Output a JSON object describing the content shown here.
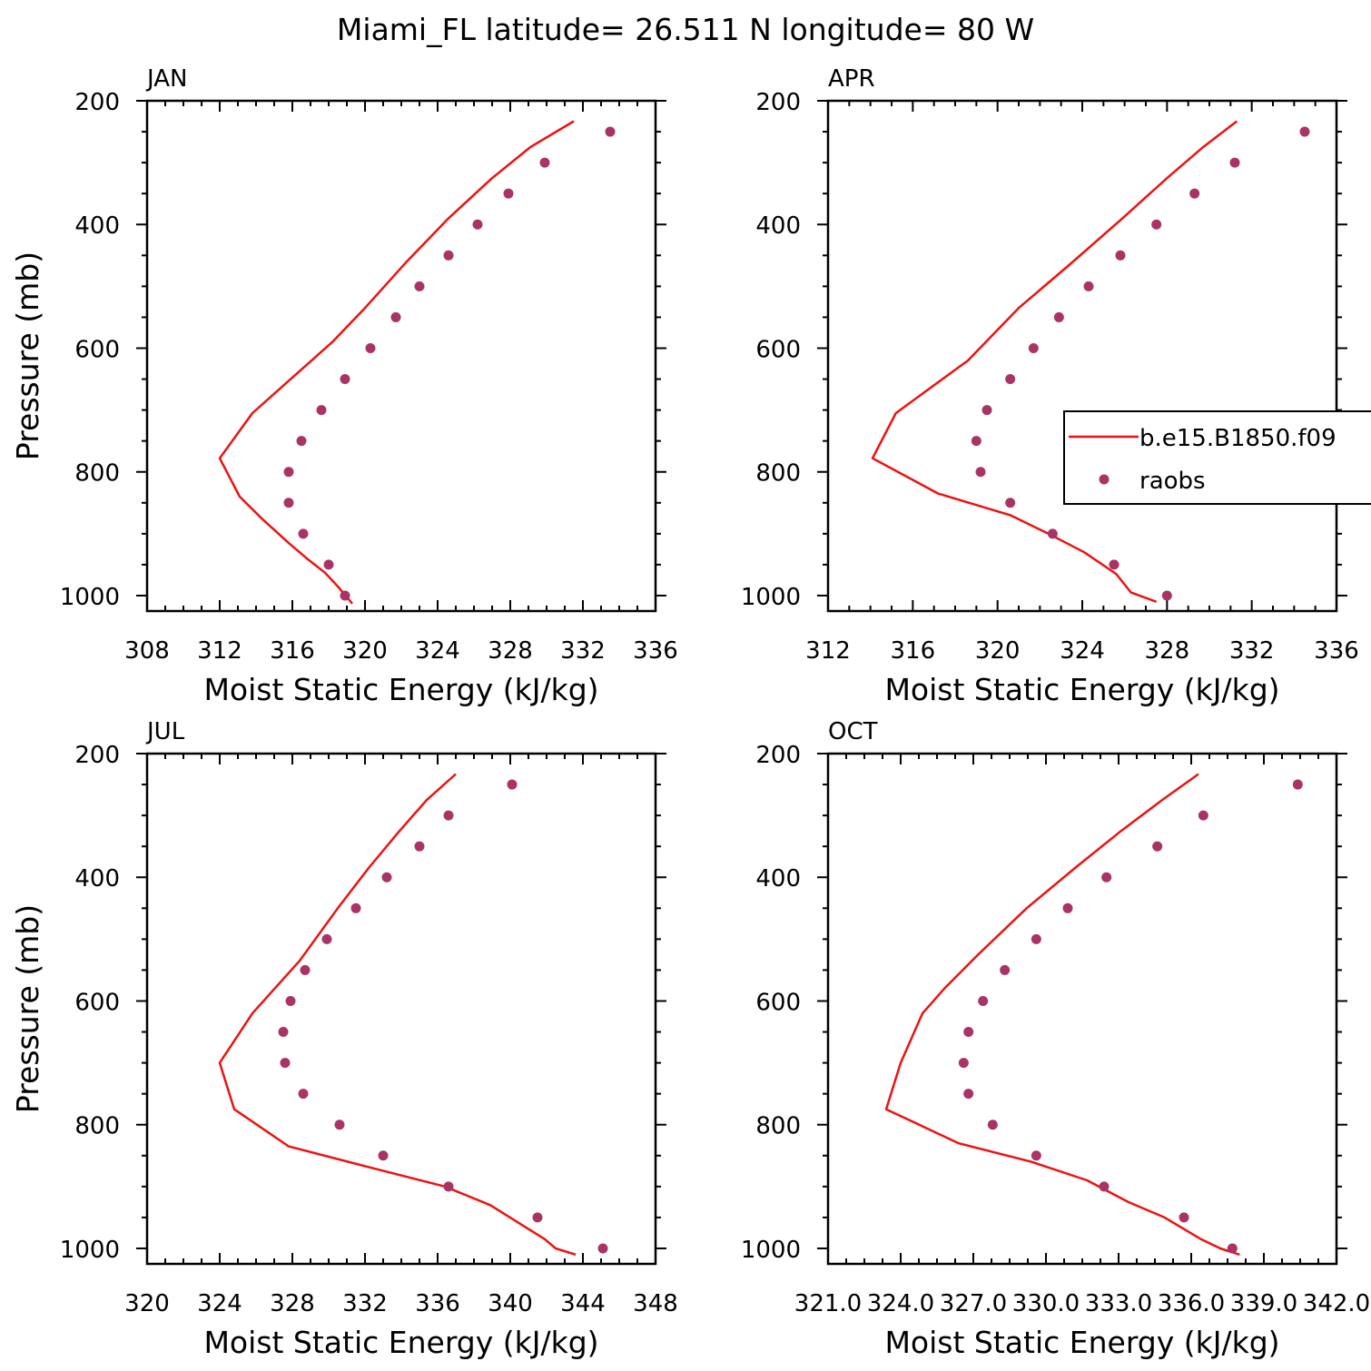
{
  "figure_title": "Miami_FL  latitude= 26.511 N longitude= 80 W",
  "colors": {
    "model": "#ee1111",
    "raobs": "#aa3366",
    "axes": "#000000"
  },
  "legend": {
    "entries": [
      "b.e15.B1850.f09",
      "raobs"
    ],
    "placement": "right, inside APR panel"
  },
  "chart_data": [
    {
      "type": "line",
      "panel_title": "JAN",
      "xlabel": "Moist Static Energy (kJ/kg)",
      "ylabel": "Pressure (mb)",
      "xlim": [
        308,
        336
      ],
      "ylim": [
        1025,
        200
      ],
      "xticks": [
        "308",
        "312",
        "316",
        "320",
        "324",
        "328",
        "332",
        "336"
      ],
      "yticks": [
        "200",
        "400",
        "600",
        "800",
        "1000"
      ],
      "series": [
        {
          "name": "b.e15.B1850.f09",
          "kind": "line",
          "x": [
            331.5,
            329.1,
            327.0,
            324.6,
            322.3,
            320.0,
            318.2,
            316.1,
            313.8,
            312.0,
            313.1,
            314.3,
            315.8,
            316.8,
            317.8,
            318.5,
            319.3
          ],
          "y": [
            233,
            275,
            325,
            390,
            460,
            535,
            590,
            645,
            705,
            778,
            840,
            875,
            915,
            940,
            963,
            985,
            1013
          ]
        },
        {
          "name": "raobs",
          "kind": "scatter",
          "x": [
            333.5,
            329.9,
            327.9,
            326.2,
            324.6,
            323.0,
            321.7,
            320.3,
            318.9,
            317.6,
            316.5,
            315.8,
            315.8,
            316.6,
            318.0,
            318.9
          ],
          "y": [
            250,
            300,
            350,
            400,
            450,
            500,
            550,
            600,
            650,
            700,
            750,
            800,
            850,
            900,
            950,
            1000
          ]
        }
      ]
    },
    {
      "type": "line",
      "panel_title": "APR",
      "xlabel": "Moist Static Energy (kJ/kg)",
      "ylabel": "",
      "xlim": [
        312,
        336
      ],
      "ylim": [
        1025,
        200
      ],
      "xticks": [
        "312",
        "316",
        "320",
        "324",
        "328",
        "332",
        "336"
      ],
      "yticks": [
        "200",
        "400",
        "600",
        "800",
        "1000"
      ],
      "series": [
        {
          "name": "b.e15.B1850.f09",
          "kind": "line",
          "x": [
            331.3,
            329.7,
            328.0,
            325.9,
            323.4,
            321.0,
            318.6,
            315.2,
            314.1,
            317.2,
            320.6,
            322.4,
            324.1,
            325.6,
            326.3,
            327.5
          ],
          "y": [
            233,
            275,
            325,
            390,
            465,
            535,
            620,
            705,
            778,
            835,
            870,
            900,
            930,
            965,
            995,
            1010
          ]
        },
        {
          "name": "raobs",
          "kind": "scatter",
          "x": [
            334.5,
            331.2,
            329.3,
            327.5,
            325.8,
            324.3,
            322.9,
            321.7,
            320.6,
            319.5,
            319.0,
            319.2,
            320.6,
            322.6,
            325.5,
            328.0
          ],
          "y": [
            250,
            300,
            350,
            400,
            450,
            500,
            550,
            600,
            650,
            700,
            750,
            800,
            850,
            900,
            950,
            1000
          ]
        }
      ]
    },
    {
      "type": "line",
      "panel_title": "JUL",
      "xlabel": "Moist Static Energy (kJ/kg)",
      "ylabel": "Pressure (mb)",
      "xlim": [
        320,
        348
      ],
      "ylim": [
        1025,
        200
      ],
      "xticks": [
        "320",
        "324",
        "328",
        "332",
        "336",
        "340",
        "344",
        "348"
      ],
      "yticks": [
        "200",
        "400",
        "600",
        "800",
        "1000"
      ],
      "series": [
        {
          "name": "b.e15.B1850.f09",
          "kind": "line",
          "x": [
            337.0,
            335.4,
            333.9,
            332.2,
            330.5,
            328.4,
            325.8,
            324.0,
            324.8,
            327.8,
            332.4,
            336.4,
            338.9,
            340.8,
            341.9,
            342.5,
            343.6
          ],
          "y": [
            233,
            275,
            325,
            385,
            450,
            535,
            620,
            700,
            775,
            835,
            870,
            900,
            930,
            965,
            985,
            1000,
            1010
          ]
        },
        {
          "name": "raobs",
          "kind": "scatter",
          "x": [
            340.1,
            336.6,
            335.0,
            333.2,
            331.5,
            329.9,
            328.7,
            327.9,
            327.5,
            327.6,
            328.6,
            330.6,
            333.0,
            336.6,
            341.5,
            345.1
          ],
          "y": [
            250,
            300,
            350,
            400,
            450,
            500,
            550,
            600,
            650,
            700,
            750,
            800,
            850,
            900,
            950,
            1000
          ]
        }
      ]
    },
    {
      "type": "line",
      "panel_title": "OCT",
      "xlabel": "Moist Static Energy (kJ/kg)",
      "ylabel": "",
      "xlim": [
        321.0,
        342.0
      ],
      "ylim": [
        1025,
        200
      ],
      "xticks": [
        "321.0",
        "324.0",
        "327.0",
        "330.0",
        "333.0",
        "336.0",
        "339.0",
        "342.0"
      ],
      "yticks": [
        "200",
        "400",
        "600",
        "800",
        "1000"
      ],
      "series": [
        {
          "name": "b.e15.B1850.f09",
          "kind": "line",
          "x": [
            336.3,
            334.8,
            333.1,
            331.2,
            329.2,
            327.2,
            325.8,
            324.9,
            324.0,
            323.4,
            326.4,
            329.4,
            331.7,
            333.4,
            334.9,
            336.4,
            337.2,
            338.0
          ],
          "y": [
            233,
            275,
            325,
            385,
            450,
            525,
            580,
            620,
            700,
            775,
            830,
            860,
            890,
            925,
            950,
            985,
            1000,
            1010
          ]
        },
        {
          "name": "raobs",
          "kind": "scatter",
          "x": [
            340.4,
            336.5,
            334.6,
            332.5,
            330.9,
            329.6,
            328.3,
            327.4,
            326.8,
            326.6,
            326.8,
            327.8,
            329.6,
            332.4,
            335.7,
            337.7
          ],
          "y": [
            250,
            300,
            350,
            400,
            450,
            500,
            550,
            600,
            650,
            700,
            750,
            800,
            850,
            900,
            950,
            1000
          ]
        }
      ]
    }
  ]
}
